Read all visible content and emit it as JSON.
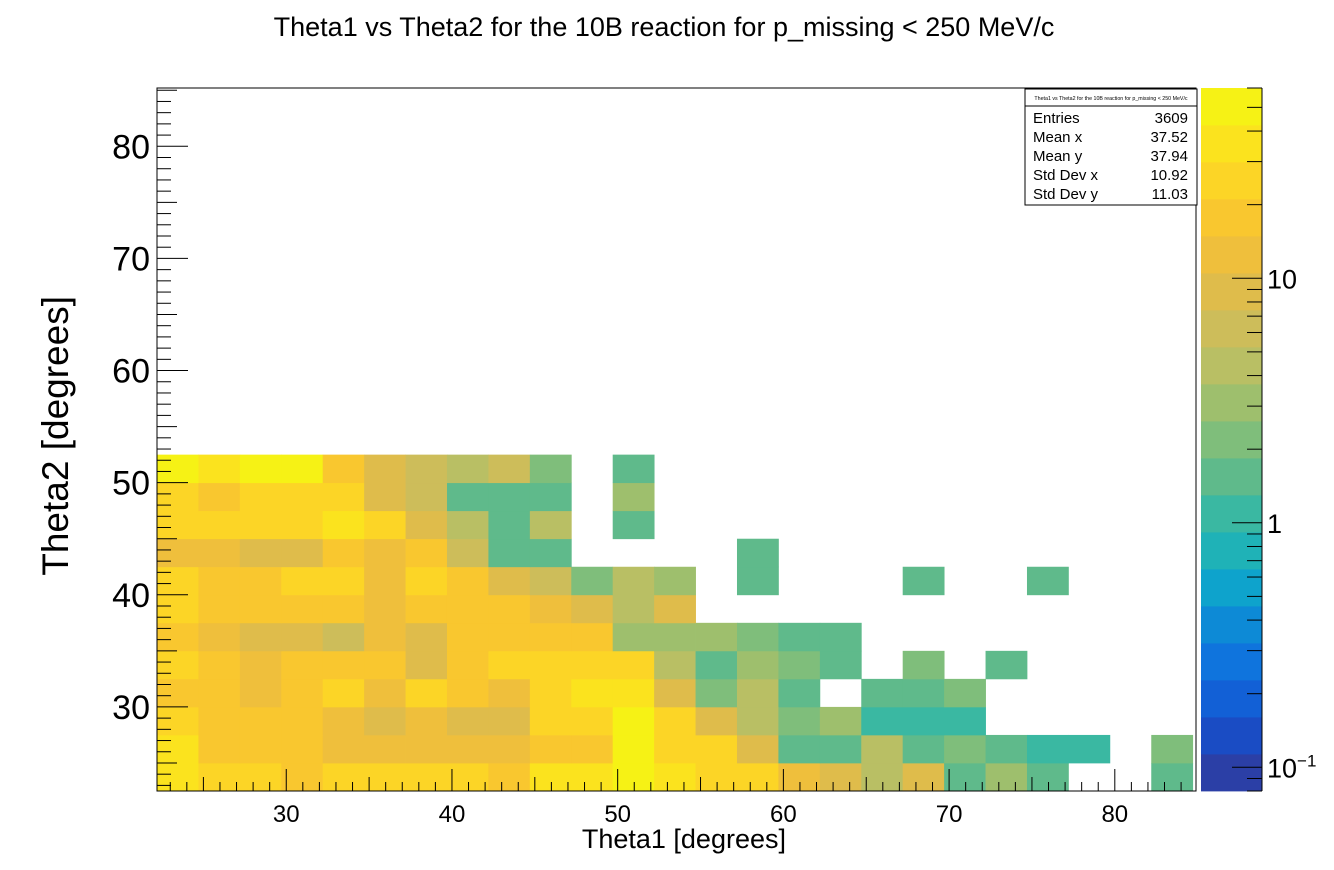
{
  "chart_data": {
    "type": "heatmap",
    "title": "Theta1 vs Theta2 for the 10B reaction for p_missing < 250 MeV/c",
    "xlabel": "Theta1 [degrees]",
    "ylabel": "Theta2 [degrees]",
    "xlim": [
      22.2,
      84.9
    ],
    "ylim": [
      22.5,
      85.2
    ],
    "x_bin_start": 22.2,
    "y_bin_start": 22.5,
    "bin_width": 2.5,
    "x_ticks": [
      30,
      40,
      50,
      60,
      70,
      80
    ],
    "y_ticks": [
      30,
      40,
      50,
      60,
      70,
      80
    ],
    "z_scale": "log",
    "z_range": [
      0.08,
      60
    ],
    "z_ticks": [
      {
        "value": 0.1,
        "label": "10",
        "sup": "−1"
      },
      {
        "value": 1,
        "label": "1",
        "sup": ""
      },
      {
        "value": 10,
        "label": "10",
        "sup": ""
      }
    ],
    "palette": [
      "#2b3fa6",
      "#1a4cc4",
      "#1260d6",
      "#0f74dd",
      "#0d8ad6",
      "#0ea3cc",
      "#1fb2b7",
      "#3ab8a2",
      "#5fba8b",
      "#7fbe7b",
      "#9ebf6d",
      "#b9bf64",
      "#cdbd5a",
      "#dfbc4b",
      "#efbf3c",
      "#f9c72f",
      "#fcd526",
      "#fbe31e",
      "#f6f215"
    ],
    "stats": {
      "title": "Theta1 vs Theta2 for the 10B reaction for p_missing < 250 MeV/c",
      "rows": [
        {
          "label": "Entries",
          "value": "3609"
        },
        {
          "label": "Mean x",
          "value": "37.52"
        },
        {
          "label": "Mean y",
          "value": "37.94"
        },
        {
          "label": "Std Dev x",
          "value": "10.92"
        },
        {
          "label": "Std Dev y",
          "value": "11.03"
        }
      ]
    },
    "cells": [
      [
        0,
        0,
        30
      ],
      [
        1,
        0,
        22
      ],
      [
        2,
        0,
        22
      ],
      [
        3,
        0,
        20
      ],
      [
        4,
        0,
        26
      ],
      [
        5,
        0,
        28
      ],
      [
        6,
        0,
        26
      ],
      [
        7,
        0,
        24
      ],
      [
        8,
        0,
        20
      ],
      [
        9,
        0,
        30
      ],
      [
        10,
        0,
        38
      ],
      [
        11,
        0,
        45
      ],
      [
        12,
        0,
        30
      ],
      [
        13,
        0,
        28
      ],
      [
        14,
        0,
        28
      ],
      [
        15,
        0,
        14
      ],
      [
        16,
        0,
        10
      ],
      [
        17,
        0,
        5
      ],
      [
        18,
        0,
        8
      ],
      [
        19,
        0,
        1.4
      ],
      [
        20,
        0,
        3
      ],
      [
        21,
        0,
        1.3
      ],
      [
        24,
        0,
        1.3
      ],
      [
        0,
        1,
        30
      ],
      [
        1,
        1,
        15
      ],
      [
        2,
        1,
        15
      ],
      [
        3,
        1,
        15
      ],
      [
        4,
        1,
        12
      ],
      [
        5,
        1,
        12
      ],
      [
        6,
        1,
        14
      ],
      [
        7,
        1,
        12
      ],
      [
        8,
        1,
        12
      ],
      [
        9,
        1,
        15
      ],
      [
        10,
        1,
        20
      ],
      [
        11,
        1,
        45
      ],
      [
        12,
        1,
        28
      ],
      [
        13,
        1,
        22
      ],
      [
        14,
        1,
        10
      ],
      [
        15,
        1,
        1.3
      ],
      [
        16,
        1,
        1.3
      ],
      [
        17,
        1,
        5
      ],
      [
        18,
        1,
        1.3
      ],
      [
        19,
        1,
        2.2
      ],
      [
        20,
        1,
        1.5
      ],
      [
        21,
        1,
        1.2
      ],
      [
        22,
        1,
        1.2
      ],
      [
        24,
        1,
        2
      ],
      [
        0,
        2,
        28
      ],
      [
        1,
        2,
        15
      ],
      [
        2,
        2,
        15
      ],
      [
        3,
        2,
        15
      ],
      [
        4,
        2,
        12
      ],
      [
        5,
        2,
        8
      ],
      [
        6,
        2,
        12
      ],
      [
        7,
        2,
        10
      ],
      [
        8,
        2,
        10
      ],
      [
        9,
        2,
        22
      ],
      [
        10,
        2,
        25
      ],
      [
        11,
        2,
        45
      ],
      [
        12,
        2,
        28
      ],
      [
        13,
        2,
        9
      ],
      [
        14,
        2,
        5
      ],
      [
        15,
        2,
        2
      ],
      [
        16,
        2,
        3
      ],
      [
        17,
        2,
        1.2
      ],
      [
        18,
        2,
        1.2
      ],
      [
        19,
        2,
        1.2
      ],
      [
        0,
        3,
        18
      ],
      [
        1,
        3,
        15
      ],
      [
        2,
        3,
        12
      ],
      [
        3,
        3,
        15
      ],
      [
        4,
        3,
        24
      ],
      [
        5,
        3,
        12
      ],
      [
        6,
        3,
        25
      ],
      [
        7,
        3,
        15
      ],
      [
        8,
        3,
        12
      ],
      [
        9,
        3,
        25
      ],
      [
        10,
        3,
        30
      ],
      [
        11,
        3,
        30
      ],
      [
        12,
        3,
        9
      ],
      [
        13,
        3,
        2
      ],
      [
        14,
        3,
        5
      ],
      [
        15,
        3,
        1.3
      ],
      [
        17,
        3,
        1.3
      ],
      [
        18,
        3,
        1.3
      ],
      [
        19,
        3,
        2
      ],
      [
        0,
        4,
        28
      ],
      [
        1,
        4,
        15
      ],
      [
        2,
        4,
        14
      ],
      [
        3,
        4,
        15
      ],
      [
        4,
        4,
        15
      ],
      [
        5,
        4,
        15
      ],
      [
        6,
        4,
        9
      ],
      [
        7,
        4,
        20
      ],
      [
        8,
        4,
        25
      ],
      [
        9,
        4,
        28
      ],
      [
        10,
        4,
        28
      ],
      [
        11,
        4,
        28
      ],
      [
        12,
        4,
        4
      ],
      [
        13,
        4,
        1.4
      ],
      [
        14,
        4,
        3
      ],
      [
        15,
        4,
        2
      ],
      [
        16,
        4,
        1.3
      ],
      [
        18,
        4,
        2.5
      ],
      [
        20,
        4,
        1.3
      ],
      [
        0,
        5,
        18
      ],
      [
        1,
        5,
        11
      ],
      [
        2,
        5,
        8
      ],
      [
        3,
        5,
        8
      ],
      [
        4,
        5,
        6
      ],
      [
        5,
        5,
        12
      ],
      [
        6,
        5,
        9
      ],
      [
        7,
        5,
        15
      ],
      [
        8,
        5,
        18
      ],
      [
        9,
        5,
        18
      ],
      [
        10,
        5,
        15
      ],
      [
        11,
        5,
        3
      ],
      [
        12,
        5,
        3
      ],
      [
        13,
        5,
        3
      ],
      [
        14,
        5,
        2
      ],
      [
        15,
        5,
        1.3
      ],
      [
        16,
        5,
        1.3
      ],
      [
        0,
        6,
        22
      ],
      [
        1,
        6,
        15
      ],
      [
        2,
        6,
        15
      ],
      [
        3,
        6,
        15
      ],
      [
        4,
        6,
        15
      ],
      [
        5,
        6,
        14
      ],
      [
        6,
        6,
        15
      ],
      [
        7,
        6,
        15
      ],
      [
        8,
        6,
        20
      ],
      [
        9,
        6,
        12
      ],
      [
        10,
        6,
        9
      ],
      [
        11,
        6,
        5
      ],
      [
        12,
        6,
        8
      ],
      [
        0,
        7,
        24
      ],
      [
        1,
        7,
        15
      ],
      [
        2,
        7,
        15
      ],
      [
        3,
        7,
        22
      ],
      [
        4,
        7,
        22
      ],
      [
        5,
        7,
        12
      ],
      [
        6,
        7,
        22
      ],
      [
        7,
        7,
        20
      ],
      [
        8,
        7,
        9
      ],
      [
        9,
        7,
        6
      ],
      [
        10,
        7,
        2.5
      ],
      [
        11,
        7,
        4
      ],
      [
        12,
        7,
        3
      ],
      [
        14,
        7,
        1.3
      ],
      [
        18,
        7,
        1.3
      ],
      [
        21,
        7,
        1.3
      ],
      [
        0,
        8,
        12
      ],
      [
        1,
        8,
        12
      ],
      [
        2,
        8,
        10
      ],
      [
        3,
        8,
        10
      ],
      [
        4,
        8,
        18
      ],
      [
        5,
        8,
        13
      ],
      [
        6,
        8,
        20
      ],
      [
        7,
        8,
        6
      ],
      [
        8,
        8,
        1.3
      ],
      [
        9,
        8,
        1.3
      ],
      [
        14,
        8,
        1.3
      ],
      [
        0,
        9,
        28
      ],
      [
        1,
        9,
        28
      ],
      [
        2,
        9,
        22
      ],
      [
        3,
        9,
        25
      ],
      [
        4,
        9,
        35
      ],
      [
        5,
        9,
        28
      ],
      [
        6,
        9,
        8
      ],
      [
        7,
        9,
        4
      ],
      [
        8,
        9,
        1.3
      ],
      [
        9,
        9,
        5
      ],
      [
        11,
        9,
        1.3
      ],
      [
        0,
        10,
        28
      ],
      [
        1,
        10,
        20
      ],
      [
        2,
        10,
        28
      ],
      [
        3,
        10,
        28
      ],
      [
        4,
        10,
        25
      ],
      [
        5,
        10,
        8
      ],
      [
        6,
        10,
        6
      ],
      [
        7,
        10,
        1.3
      ],
      [
        8,
        10,
        1.3
      ],
      [
        9,
        10,
        1.3
      ],
      [
        11,
        10,
        3
      ],
      [
        0,
        11,
        45
      ],
      [
        1,
        11,
        35
      ],
      [
        2,
        11,
        45
      ],
      [
        3,
        11,
        45
      ],
      [
        4,
        11,
        20
      ],
      [
        5,
        11,
        9
      ],
      [
        6,
        11,
        6
      ],
      [
        7,
        11,
        4
      ],
      [
        8,
        11,
        6
      ],
      [
        9,
        11,
        2
      ],
      [
        11,
        11,
        1.3
      ]
    ]
  }
}
